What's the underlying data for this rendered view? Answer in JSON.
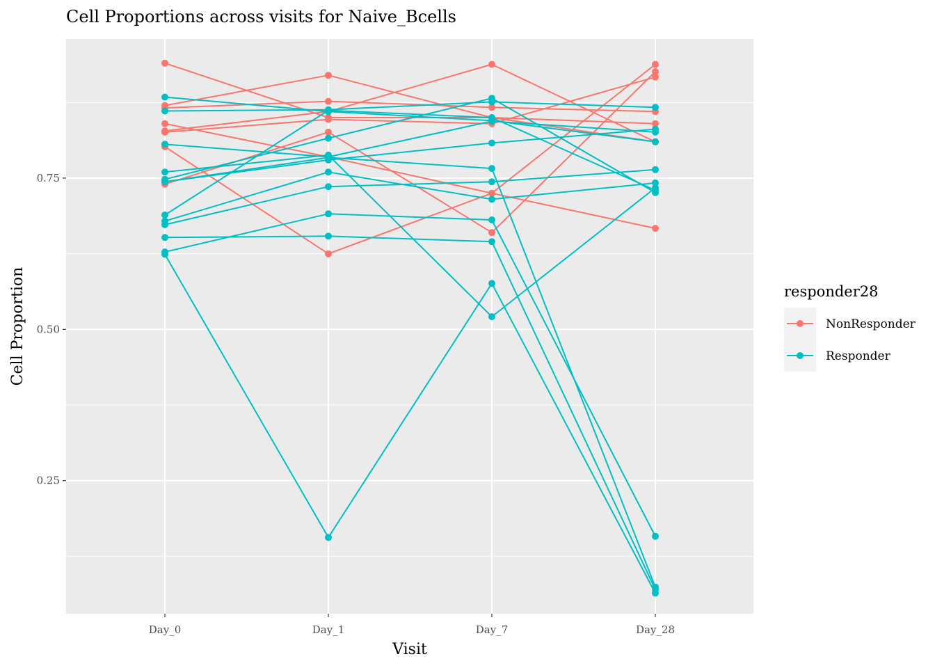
{
  "chart_data": {
    "type": "line",
    "title": "Cell Proportions across visits for Naive_Bcells",
    "xlabel": "Visit",
    "ylabel": "Cell Proportion",
    "categories": [
      "Day_0",
      "Day_1",
      "Day_7",
      "Day_28"
    ],
    "ylim": [
      0.03,
      0.98
    ],
    "yticks": [
      0.25,
      0.5,
      0.75
    ],
    "ytick_labels": [
      "0.25",
      "0.50",
      "0.75"
    ],
    "grid": true,
    "legend": {
      "title": "responder28",
      "position": "right",
      "entries": [
        {
          "name": "NonResponder",
          "color": "#F8766D"
        },
        {
          "name": "Responder",
          "color": "#00BFC4"
        }
      ]
    },
    "series": [
      {
        "group": "NonResponder",
        "values": [
          0.94,
          0.85,
          0.85,
          0.84
        ]
      },
      {
        "group": "NonResponder",
        "values": [
          0.87,
          0.92,
          0.85,
          0.81
        ]
      },
      {
        "group": "NonResponder",
        "values": [
          0.866,
          0.877,
          0.867,
          0.86
        ]
      },
      {
        "group": "NonResponder",
        "values": [
          0.84,
          0.785,
          0.725,
          0.667
        ]
      },
      {
        "group": "NonResponder",
        "values": [
          0.826,
          0.847,
          0.84,
          0.917
        ]
      },
      {
        "group": "NonResponder",
        "values": [
          0.828,
          0.86,
          0.938,
          0.81
        ]
      },
      {
        "group": "NonResponder",
        "values": [
          0.802,
          0.625,
          0.725,
          0.938
        ]
      },
      {
        "group": "NonResponder",
        "values": [
          0.74,
          0.826,
          0.66,
          0.926
        ]
      },
      {
        "group": "Responder",
        "values": [
          0.884,
          0.86,
          0.845,
          0.81
        ]
      },
      {
        "group": "Responder",
        "values": [
          0.861,
          0.863,
          0.876,
          0.867
        ]
      },
      {
        "group": "Responder",
        "values": [
          0.806,
          0.785,
          0.844,
          0.826
        ]
      },
      {
        "group": "Responder",
        "values": [
          0.748,
          0.816,
          0.882,
          0.726
        ]
      },
      {
        "group": "Responder",
        "values": [
          0.744,
          0.78,
          0.808,
          0.831
        ]
      },
      {
        "group": "Responder",
        "values": [
          0.689,
          0.862,
          0.85,
          0.73
        ]
      },
      {
        "group": "Responder",
        "values": [
          0.679,
          0.76,
          0.715,
          0.742
        ]
      },
      {
        "group": "Responder",
        "values": [
          0.673,
          0.736,
          0.744,
          0.764
        ]
      },
      {
        "group": "Responder",
        "values": [
          0.652,
          0.654,
          0.645,
          0.07
        ]
      },
      {
        "group": "Responder",
        "values": [
          0.628,
          0.691,
          0.681,
          0.158
        ]
      },
      {
        "group": "Responder",
        "values": [
          0.624,
          0.156,
          0.576,
          0.064
        ]
      },
      {
        "group": "Responder",
        "values": [
          0.744,
          0.784,
          0.766,
          0.074
        ]
      },
      {
        "group": "Responder",
        "values": [
          0.76,
          0.788,
          0.521,
          0.734
        ]
      }
    ]
  }
}
